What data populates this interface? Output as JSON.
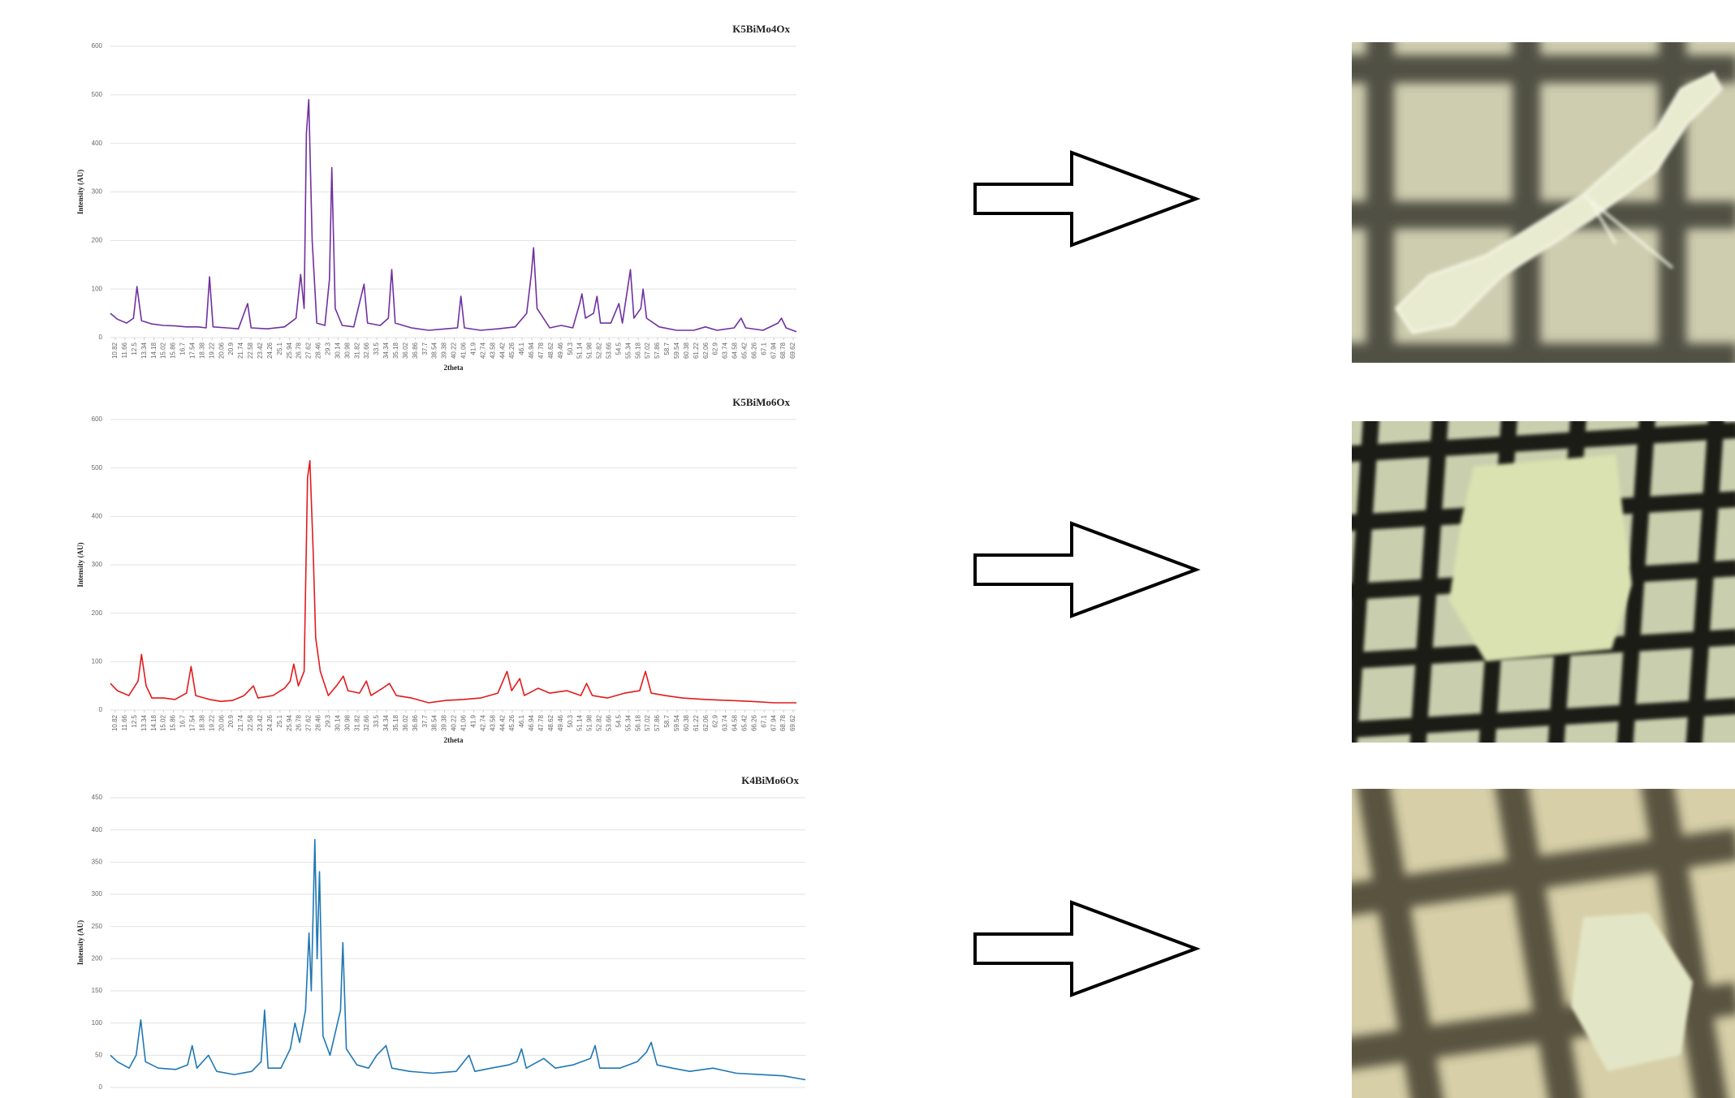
{
  "chart_data": [
    {
      "type": "line",
      "title": "K5BiMo4Ox",
      "ylabel": "Intensity (AU)",
      "xlabel": "2theta",
      "xlim": [
        10.4,
        69.9
      ],
      "ylim": [
        0,
        600
      ],
      "yticks": [
        0,
        100,
        200,
        300,
        400,
        500,
        600
      ],
      "grid": true,
      "xticks": [
        10.82,
        11.66,
        12.5,
        13.34,
        14.18,
        15.02,
        15.86,
        16.7,
        17.54,
        18.38,
        19.22,
        20.06,
        20.9,
        21.74,
        22.58,
        23.42,
        24.26,
        25.1,
        25.94,
        26.78,
        27.62,
        28.46,
        29.3,
        30.14,
        30.98,
        31.82,
        32.66,
        33.5,
        34.34,
        35.18,
        36.02,
        36.86,
        37.7,
        38.54,
        39.38,
        40.22,
        41.06,
        41.9,
        42.74,
        43.58,
        44.42,
        45.26,
        46.1,
        46.94,
        47.78,
        48.62,
        49.46,
        50.3,
        51.14,
        51.98,
        52.82,
        53.66,
        54.5,
        55.34,
        56.18,
        57.02,
        57.86,
        58.7,
        59.54,
        60.38,
        61.22,
        62.06,
        62.9,
        63.74,
        64.58,
        65.42,
        66.26,
        67.1,
        67.94,
        68.78,
        69.62
      ],
      "series": [
        {
          "color": "#7030a0",
          "x": [
            10.4,
            11,
            11.8,
            12.4,
            12.7,
            13.1,
            14,
            15,
            16,
            17,
            18,
            18.7,
            19,
            19.3,
            20.5,
            21.5,
            22.3,
            22.6,
            24,
            25.5,
            26.5,
            26.9,
            27.2,
            27.4,
            27.6,
            27.9,
            28.3,
            29,
            29.4,
            29.6,
            29.9,
            30.5,
            31.5,
            32.4,
            32.7,
            33.8,
            34.5,
            34.8,
            35.1,
            36.5,
            38,
            39.5,
            40.5,
            40.8,
            41.1,
            42.5,
            44,
            45.5,
            46.5,
            46.9,
            47.1,
            47.4,
            48.5,
            49.5,
            50.5,
            51.1,
            51.3,
            51.6,
            52.3,
            52.6,
            52.9,
            53.8,
            54.5,
            54.8,
            55.5,
            55.8,
            56.4,
            56.6,
            56.9,
            58,
            59.5,
            61,
            62,
            63,
            64.5,
            65.1,
            65.5,
            67,
            68.3,
            68.6,
            69,
            69.9
          ],
          "values": [
            50,
            38,
            30,
            40,
            105,
            35,
            28,
            25,
            24,
            22,
            22,
            20,
            125,
            22,
            20,
            18,
            70,
            20,
            18,
            22,
            40,
            130,
            60,
            420,
            490,
            200,
            30,
            25,
            120,
            350,
            60,
            25,
            22,
            110,
            30,
            25,
            40,
            140,
            30,
            20,
            15,
            18,
            20,
            85,
            20,
            15,
            18,
            22,
            50,
            130,
            185,
            60,
            20,
            25,
            20,
            70,
            90,
            40,
            50,
            85,
            30,
            30,
            70,
            30,
            140,
            40,
            60,
            100,
            40,
            22,
            15,
            15,
            22,
            15,
            20,
            40,
            20,
            15,
            30,
            40,
            20,
            12
          ]
        }
      ]
    },
    {
      "type": "line",
      "title": "K5BiMo6Ox",
      "ylabel": "Intensity (AU)",
      "xlabel": "2theta",
      "xlim": [
        10.4,
        69.9
      ],
      "ylim": [
        0,
        600
      ],
      "yticks": [
        0,
        100,
        200,
        300,
        400,
        500,
        600
      ],
      "grid": true,
      "xticks": [
        10.82,
        11.66,
        12.5,
        13.34,
        14.18,
        15.02,
        15.86,
        16.7,
        17.54,
        18.38,
        19.22,
        20.06,
        20.9,
        21.74,
        22.58,
        23.42,
        24.26,
        25.1,
        25.94,
        26.78,
        27.62,
        28.46,
        29.3,
        30.14,
        30.98,
        31.82,
        32.66,
        33.5,
        34.34,
        35.18,
        36.02,
        36.86,
        37.7,
        38.54,
        39.38,
        40.22,
        41.06,
        41.9,
        42.74,
        43.58,
        44.42,
        45.26,
        46.1,
        46.94,
        47.78,
        48.62,
        49.46,
        50.3,
        51.14,
        51.98,
        52.82,
        53.66,
        54.5,
        55.34,
        56.18,
        57.02,
        57.86,
        58.7,
        59.54,
        60.38,
        61.22,
        62.06,
        62.9,
        63.74,
        64.58,
        65.42,
        66.26,
        67.1,
        67.94,
        68.78,
        69.62
      ],
      "series": [
        {
          "color": "#e31a1c",
          "x": [
            10.4,
            11,
            12,
            12.8,
            13.1,
            13.5,
            14,
            15,
            16,
            17,
            17.4,
            17.8,
            19,
            20,
            21,
            22,
            22.8,
            23.2,
            24.5,
            25.5,
            26,
            26.3,
            26.7,
            27.2,
            27.5,
            27.7,
            28,
            28.2,
            28.6,
            29.3,
            30,
            30.6,
            31,
            32,
            32.6,
            33,
            34,
            34.6,
            35.2,
            36.5,
            38,
            39.5,
            41,
            42.5,
            44,
            44.8,
            45.2,
            45.9,
            46.3,
            47.5,
            48.5,
            50,
            51.2,
            51.7,
            52.2,
            53.5,
            55,
            56.3,
            56.8,
            57.3,
            58.5,
            60,
            62,
            64,
            66,
            68,
            69.9
          ],
          "values": [
            55,
            40,
            30,
            60,
            115,
            50,
            25,
            25,
            22,
            35,
            90,
            30,
            22,
            18,
            20,
            30,
            50,
            25,
            30,
            45,
            60,
            95,
            50,
            80,
            480,
            515,
            320,
            150,
            80,
            30,
            50,
            70,
            40,
            35,
            60,
            30,
            45,
            55,
            30,
            25,
            15,
            20,
            22,
            25,
            35,
            80,
            40,
            65,
            30,
            45,
            35,
            40,
            30,
            55,
            30,
            25,
            35,
            40,
            80,
            35,
            30,
            25,
            22,
            20,
            18,
            15,
            15
          ]
        }
      ]
    },
    {
      "type": "line",
      "title": "K4BiMo6Ox",
      "ylabel": "Intensity (AU)",
      "xlim": [
        10.4,
        69.9
      ],
      "ylim": [
        0,
        450
      ],
      "yticks": [
        0,
        50,
        100,
        150,
        200,
        250,
        300,
        350,
        400,
        450
      ],
      "grid": true,
      "series": [
        {
          "color": "#1f77b4",
          "x": [
            10.4,
            11,
            12,
            12.6,
            13,
            13.4,
            14.5,
            16,
            17,
            17.4,
            17.8,
            18.8,
            19.5,
            21,
            22.5,
            23.3,
            23.6,
            23.9,
            25,
            25.8,
            26.2,
            26.6,
            27.1,
            27.4,
            27.6,
            27.9,
            28.1,
            28.3,
            28.6,
            29.2,
            30.1,
            30.3,
            30.6,
            31.5,
            32.5,
            33.2,
            34,
            34.5,
            36,
            38,
            40,
            41.1,
            41.6,
            43,
            44.5,
            45.2,
            45.6,
            46,
            47.5,
            48.5,
            50,
            51.5,
            51.9,
            52.3,
            54,
            55.5,
            56.3,
            56.7,
            57.2,
            58.5,
            60,
            62,
            64,
            66,
            68,
            69.9
          ],
          "values": [
            50,
            40,
            30,
            50,
            105,
            40,
            30,
            28,
            35,
            65,
            30,
            50,
            25,
            20,
            25,
            40,
            120,
            30,
            30,
            60,
            100,
            70,
            120,
            240,
            150,
            385,
            200,
            335,
            80,
            50,
            120,
            225,
            60,
            35,
            30,
            50,
            65,
            30,
            25,
            22,
            25,
            50,
            25,
            30,
            35,
            40,
            60,
            30,
            45,
            30,
            35,
            45,
            65,
            30,
            30,
            40,
            55,
            70,
            35,
            30,
            25,
            30,
            22,
            20,
            18,
            12
          ]
        }
      ]
    }
  ]
}
